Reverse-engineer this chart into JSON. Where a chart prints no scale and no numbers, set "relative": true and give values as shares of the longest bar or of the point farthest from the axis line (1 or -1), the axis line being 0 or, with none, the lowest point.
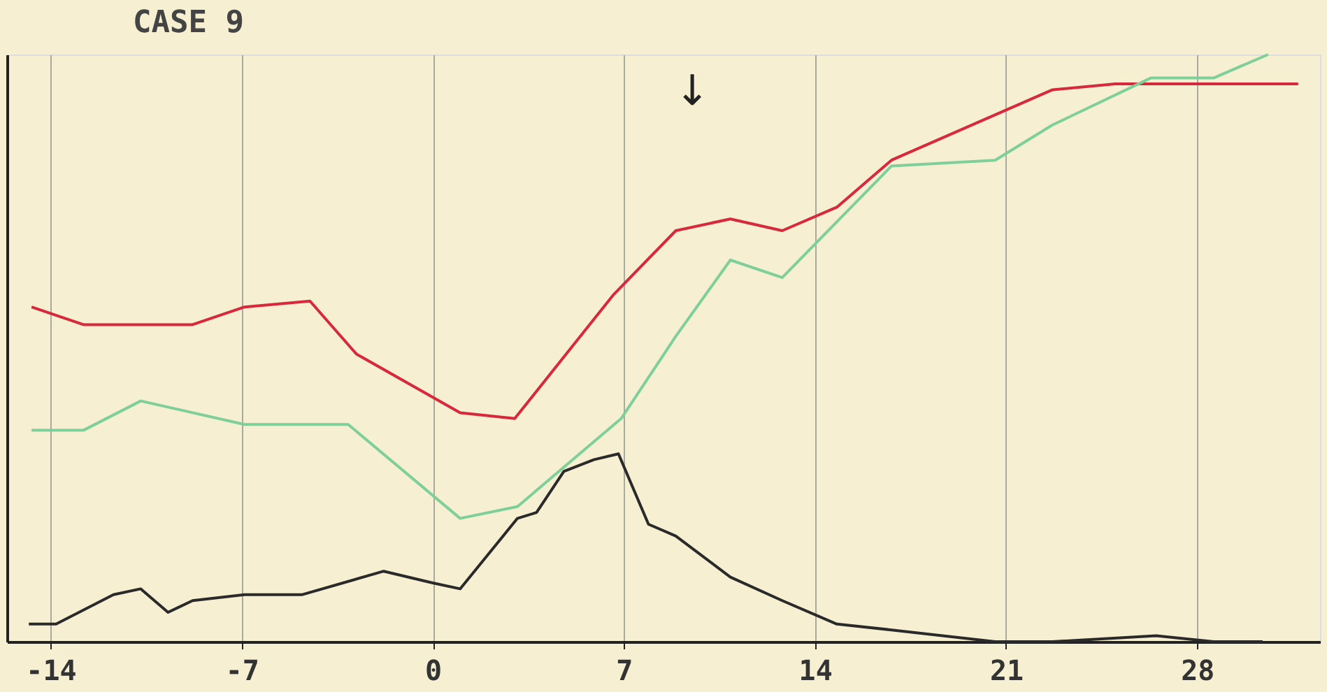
{
  "chart_data": {
    "type": "line",
    "title": "CASE 9",
    "relative": true,
    "xlim": [
      -15.6,
      32.5
    ],
    "xticks": [
      {
        "value": -14,
        "label": "-14"
      },
      {
        "value": -7,
        "label": "-7"
      },
      0,
      7,
      14,
      21,
      28
    ],
    "grid": "x",
    "marker": "none",
    "line_style": "solid",
    "annotations": [
      "↓"
    ],
    "series": [
      {
        "color": "#d8283c",
        "x": [
          -14.7,
          -12.8,
          -8.8,
          -6.9,
          -4.5,
          -2.8,
          1.0,
          3.0,
          6.6,
          8.9,
          10.9,
          12.8,
          14.8,
          16.8,
          22.7,
          25.0,
          31.7
        ],
        "values": [
          0.57,
          0.54,
          0.54,
          0.57,
          0.58,
          0.49,
          0.39,
          0.38,
          0.59,
          0.7,
          0.72,
          0.7,
          0.74,
          0.82,
          0.94,
          0.95,
          0.95
        ]
      },
      {
        "color": "#7fcf9a",
        "x": [
          -14.7,
          -12.8,
          -10.7,
          -6.9,
          -3.1,
          1.0,
          3.1,
          6.9,
          8.9,
          10.9,
          12.8,
          16.8,
          20.6,
          22.7,
          26.3,
          28.6,
          30.6
        ],
        "values": [
          0.36,
          0.36,
          0.41,
          0.37,
          0.37,
          0.21,
          0.23,
          0.38,
          0.52,
          0.65,
          0.62,
          0.81,
          0.82,
          0.88,
          0.96,
          0.96,
          1.0
        ]
      },
      {
        "color": "#2a2a2a",
        "x": [
          -14.8,
          -13.8,
          -11.7,
          -10.7,
          -9.7,
          -8.8,
          -6.9,
          -4.8,
          -1.8,
          0,
          1.0,
          3.1,
          3.8,
          4.8,
          5.9,
          6.8,
          7.9,
          8.9,
          10.9,
          12.8,
          14.8,
          16.8,
          20.6,
          22.7,
          26.5,
          28.6,
          30.4
        ],
        "values": [
          0.03,
          0.03,
          0.08,
          0.09,
          0.05,
          0.07,
          0.08,
          0.08,
          0.12,
          0.1,
          0.09,
          0.21,
          0.22,
          0.29,
          0.31,
          0.32,
          0.2,
          0.18,
          0.11,
          0.07,
          0.03,
          0.02,
          0.0,
          0.0,
          0.01,
          0.0,
          0.0
        ]
      }
    ]
  }
}
